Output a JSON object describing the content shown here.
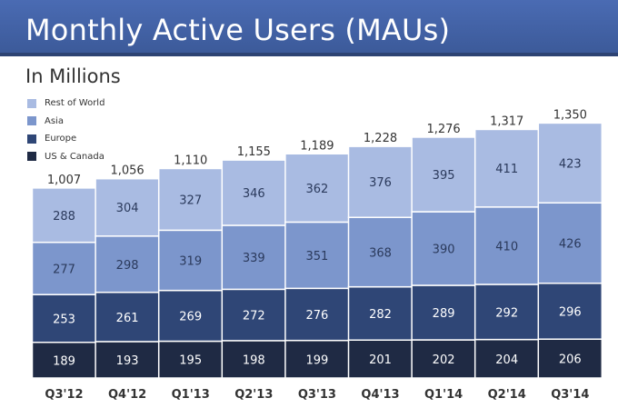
{
  "title": "Monthly Active Users (MAUs)",
  "subtitle": "In Millions",
  "chart_data": {
    "type": "bar",
    "stacked": true,
    "categories": [
      "Q3'12",
      "Q4'12",
      "Q1'13",
      "Q2'13",
      "Q3'13",
      "Q4'13",
      "Q1'14",
      "Q2'14",
      "Q3'14"
    ],
    "series": [
      {
        "name": "US & Canada",
        "color": "#1f2a44",
        "values": [
          189,
          193,
          195,
          198,
          199,
          201,
          202,
          204,
          206
        ]
      },
      {
        "name": "Europe",
        "color": "#2f4676",
        "values": [
          253,
          261,
          269,
          272,
          276,
          282,
          289,
          292,
          296
        ]
      },
      {
        "name": "Asia",
        "color": "#7c96cc",
        "values": [
          277,
          298,
          319,
          339,
          351,
          368,
          390,
          410,
          426
        ]
      },
      {
        "name": "Rest of World",
        "color": "#a9bbe2",
        "values": [
          288,
          304,
          327,
          346,
          362,
          376,
          395,
          411,
          423
        ]
      }
    ],
    "totals": [
      "1,007",
      "1,056",
      "1,110",
      "1,155",
      "1,189",
      "1,228",
      "1,276",
      "1,317",
      "1,350"
    ],
    "legend_position": "top-left",
    "legend_order": [
      "Rest of World",
      "Asia",
      "Europe",
      "US & Canada"
    ],
    "grid": false
  }
}
